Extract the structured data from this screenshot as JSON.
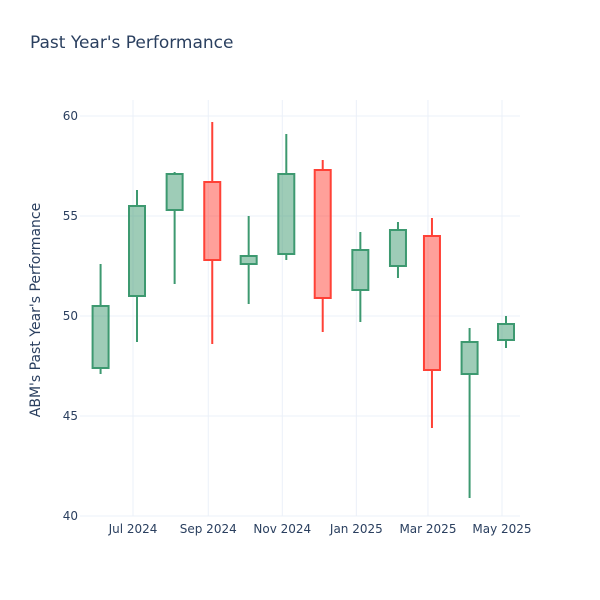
{
  "chart_data": {
    "type": "candlestick",
    "title": "Past Year's Performance",
    "ylabel": "ABM's Past Year's Performance",
    "xlabel": "",
    "ylim": [
      40,
      60.8
    ],
    "yticks": [
      40,
      45,
      50,
      55,
      60
    ],
    "xticks": [
      "Jul 2024",
      "Sep 2024",
      "Nov 2024",
      "Jan 2025",
      "Mar 2025",
      "May 2025"
    ],
    "grid": true,
    "colors": {
      "increasing": "#3d9970",
      "decreasing": "#ff4136"
    },
    "candles": [
      {
        "date": "2024-06-01",
        "open": 47.4,
        "high": 52.6,
        "low": 47.1,
        "close": 50.5
      },
      {
        "date": "2024-07-01",
        "open": 51.0,
        "high": 56.3,
        "low": 48.7,
        "close": 55.5
      },
      {
        "date": "2024-08-01",
        "open": 55.3,
        "high": 57.2,
        "low": 51.6,
        "close": 57.1
      },
      {
        "date": "2024-09-01",
        "open": 56.7,
        "high": 59.7,
        "low": 48.6,
        "close": 52.8
      },
      {
        "date": "2024-10-01",
        "open": 52.6,
        "high": 55.0,
        "low": 50.6,
        "close": 53.0
      },
      {
        "date": "2024-11-01",
        "open": 53.1,
        "high": 59.1,
        "low": 52.8,
        "close": 57.1
      },
      {
        "date": "2024-12-01",
        "open": 57.3,
        "high": 57.8,
        "low": 49.2,
        "close": 50.9
      },
      {
        "date": "2025-01-01",
        "open": 51.3,
        "high": 54.2,
        "low": 49.7,
        "close": 53.3
      },
      {
        "date": "2025-02-01",
        "open": 52.5,
        "high": 54.7,
        "low": 51.9,
        "close": 54.3
      },
      {
        "date": "2025-03-01",
        "open": 54.0,
        "high": 54.9,
        "low": 44.4,
        "close": 47.3
      },
      {
        "date": "2025-04-01",
        "open": 47.1,
        "high": 49.4,
        "low": 40.9,
        "close": 48.7
      },
      {
        "date": "2025-05-01",
        "open": 48.8,
        "high": 50.0,
        "low": 48.4,
        "close": 49.6
      }
    ]
  }
}
